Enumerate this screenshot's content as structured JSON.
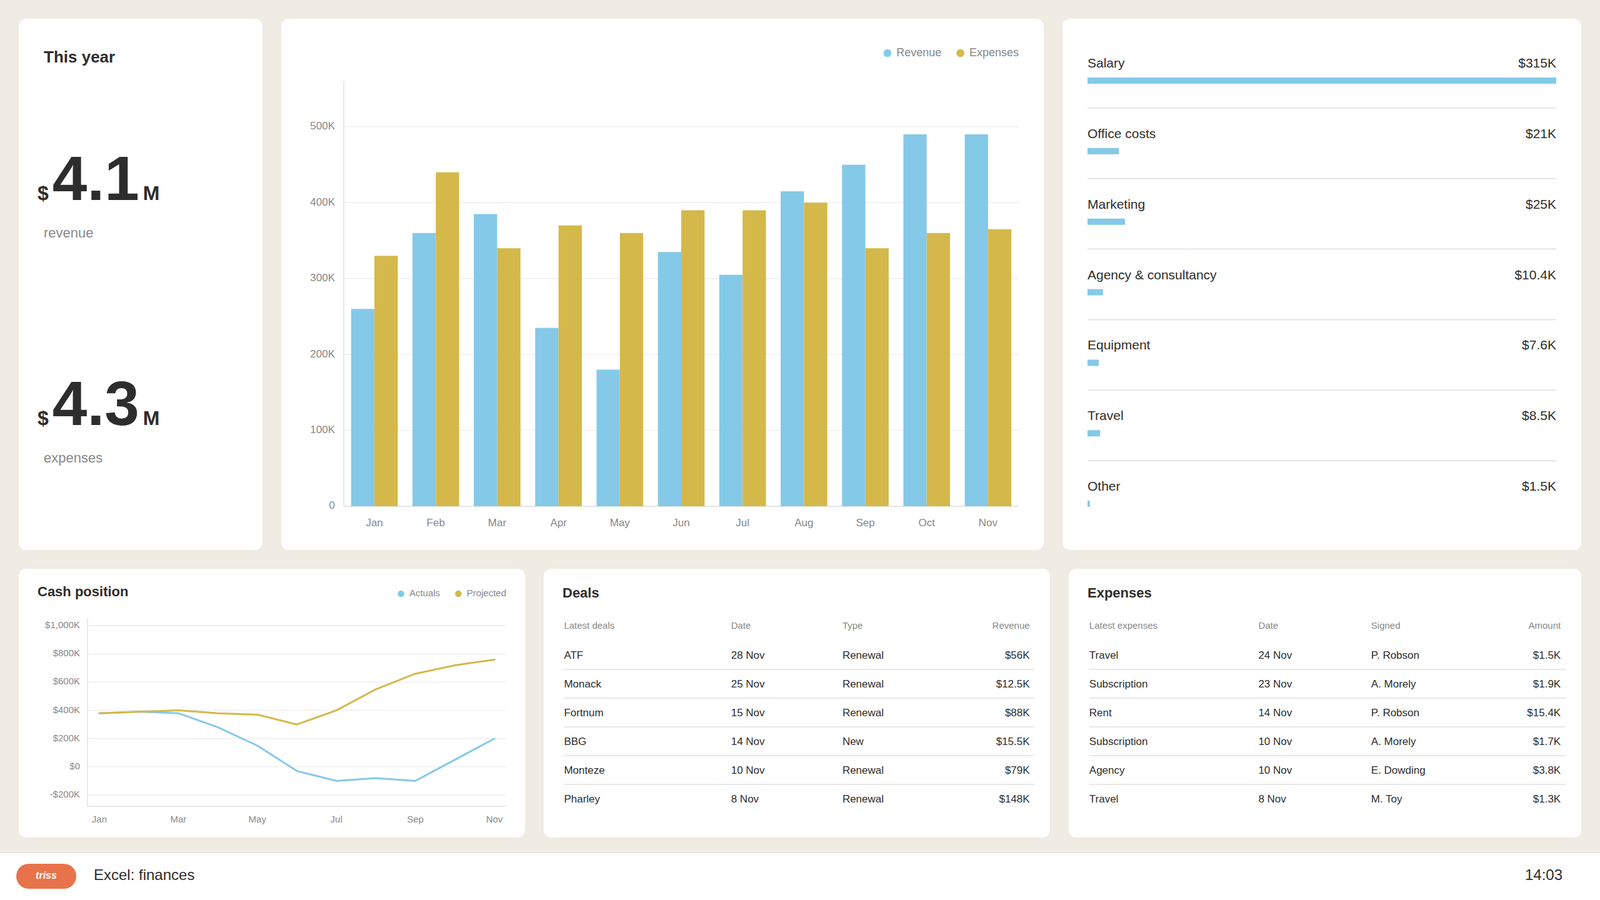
{
  "chart_data": [
    {
      "type": "kpi",
      "title": "This year",
      "items": [
        {
          "name": "revenue",
          "value": 4.1,
          "prefix": "$",
          "suffix": "M"
        },
        {
          "name": "expenses",
          "value": 4.3,
          "prefix": "$",
          "suffix": "M"
        }
      ]
    },
    {
      "type": "bar",
      "categories": [
        "Jan",
        "Feb",
        "Mar",
        "Apr",
        "May",
        "Jun",
        "Jul",
        "Aug",
        "Sep",
        "Oct",
        "Nov"
      ],
      "series": [
        {
          "name": "Revenue",
          "color": "#85c9e8",
          "values": [
            260000,
            360000,
            385000,
            235000,
            180000,
            335000,
            305000,
            415000,
            450000,
            490000,
            490000
          ]
        },
        {
          "name": "Expenses",
          "color": "#d4b84a",
          "values": [
            330000,
            440000,
            340000,
            370000,
            360000,
            390000,
            390000,
            400000,
            340000,
            360000,
            365000
          ]
        }
      ],
      "ylim": [
        0,
        560000
      ],
      "yticks": [
        0,
        {
          "value": 100000,
          "label": "100K"
        },
        {
          "value": 200000,
          "label": "200K"
        },
        {
          "value": 300000,
          "label": "300K"
        },
        {
          "value": 400000,
          "label": "400K"
        },
        {
          "value": 500000,
          "label": "500K"
        }
      ],
      "grid": true,
      "legend": "upper right"
    },
    {
      "type": "bar",
      "orientation": "horizontal",
      "categories": [
        "Salary",
        "Office costs",
        "Marketing",
        "Agency & consultancy",
        "Equipment",
        "Travel",
        "Other"
      ],
      "values": [
        1,
        0.067,
        0.08,
        0.033,
        0.024,
        0.027,
        0.005
      ],
      "amount_labels": [
        "$315K",
        "$21K",
        "$25K",
        "$10.4K",
        "$7.6K",
        "$8.5K",
        "$1.5K"
      ],
      "color": "#85c9e8",
      "xlim": [
        0,
        1
      ],
      "tick_labels": false
    },
    {
      "type": "line",
      "title": "Cash position",
      "categories": [
        "Jan",
        null,
        "Mar",
        null,
        "May",
        null,
        "Jul",
        null,
        "Sep",
        null,
        "Nov"
      ],
      "series": [
        {
          "name": "Actuals",
          "color": "#85c9e8",
          "values": [
            380000,
            390000,
            380000,
            280000,
            150000,
            -30000,
            -100000,
            -80000,
            -100000,
            50000,
            200000
          ]
        },
        {
          "name": "Projected",
          "color": "#d4b84a",
          "values": [
            380000,
            390000,
            400000,
            380000,
            370000,
            300000,
            400000,
            550000,
            660000,
            720000,
            760000
          ]
        }
      ],
      "ylim": [
        -280000,
        1050000
      ],
      "yticks": [
        {
          "value": -200000,
          "label": "-$200K"
        },
        {
          "value": 0,
          "label": "$0"
        },
        {
          "value": 200000,
          "label": "$200K"
        },
        {
          "value": 400000,
          "label": "$400K"
        },
        {
          "value": 600000,
          "label": "$600K"
        },
        {
          "value": 800000,
          "label": "$800K"
        },
        {
          "value": 1000000,
          "label": "$1,000K"
        }
      ],
      "grid": true,
      "legend": "upper right"
    },
    {
      "type": "table",
      "title": "Deals",
      "columns": [
        "Latest deals",
        "Date",
        "Type",
        "Revenue"
      ],
      "rows": [
        [
          "ATF",
          "28 Nov",
          "Renewal",
          "$56K"
        ],
        [
          "Monack",
          "25 Nov",
          "Renewal",
          "$12.5K"
        ],
        [
          "Fortnum",
          "15 Nov",
          "Renewal",
          "$88K"
        ],
        [
          "BBG",
          "14 Nov",
          "New",
          "$15.5K"
        ],
        [
          "Monteze",
          "10 Nov",
          "Renewal",
          "$79K"
        ],
        [
          "Pharley",
          "8 Nov",
          "Renewal",
          "$148K"
        ]
      ]
    },
    {
      "type": "table",
      "title": "Expenses",
      "columns": [
        "Latest expenses",
        "Date",
        "Signed",
        "Amount"
      ],
      "rows": [
        [
          "Travel",
          "24 Nov",
          "P. Robson",
          "$1.5K"
        ],
        [
          "Subscription",
          "23 Nov",
          "A. Morely",
          "$1.9K"
        ],
        [
          "Rent",
          "14 Nov",
          "P. Robson",
          "$15.4K"
        ],
        [
          "Subscription",
          "10 Nov",
          "A. Morely",
          "$1.7K"
        ],
        [
          "Agency",
          "10 Nov",
          "E. Dowding",
          "$3.8K"
        ],
        [
          "Travel",
          "8 Nov",
          "M. Toy",
          "$1.3K"
        ]
      ]
    }
  ],
  "page": {
    "logo": "triss",
    "title": "Excel: finances",
    "time": "14:03"
  }
}
